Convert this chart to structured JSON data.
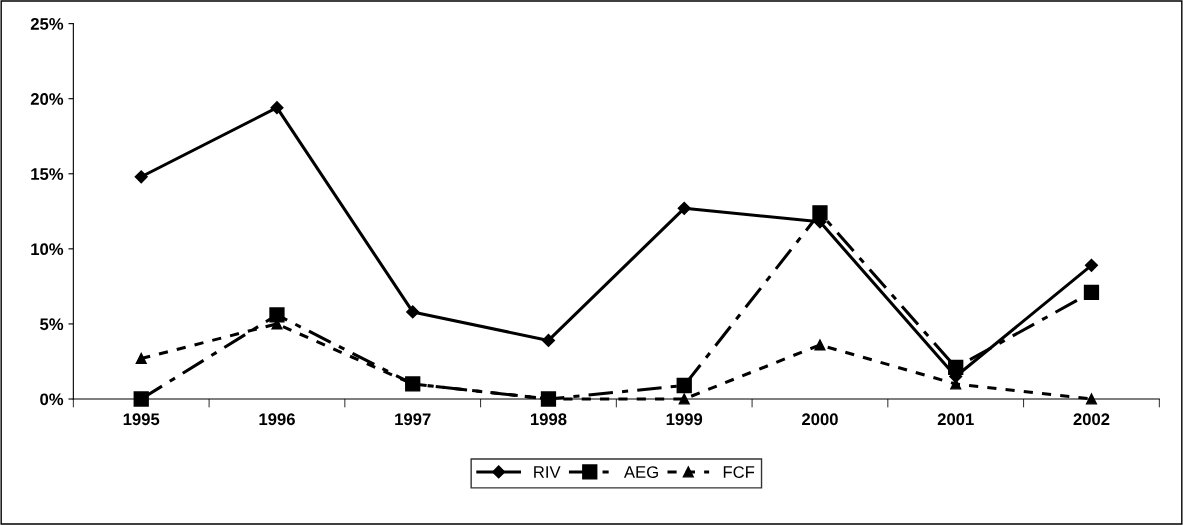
{
  "chart_data": {
    "type": "line",
    "categories": [
      "1995",
      "1996",
      "1997",
      "1998",
      "1999",
      "2000",
      "2001",
      "2002"
    ],
    "series": [
      {
        "name": "RIV",
        "color": "#000000",
        "marker": "diamond",
        "line_style": "solid",
        "values": [
          14.8,
          19.4,
          5.8,
          3.9,
          12.7,
          11.8,
          1.5,
          8.9
        ]
      },
      {
        "name": "AEG",
        "color": "#000000",
        "marker": "square",
        "line_style": "dashdot",
        "values": [
          0,
          5.6,
          1.0,
          0,
          0.9,
          12.4,
          2.1,
          7.1
        ]
      },
      {
        "name": "FCF",
        "color": "#000000",
        "marker": "triangle",
        "line_style": "dashed",
        "values": [
          2.7,
          5.0,
          1.0,
          0,
          0,
          3.6,
          1.0,
          0
        ]
      }
    ],
    "ylim": [
      0,
      25
    ],
    "yticks": [
      {
        "value": 0,
        "label": "0%"
      },
      {
        "value": 5,
        "label": "5%"
      },
      {
        "value": 10,
        "label": "10%"
      },
      {
        "value": 15,
        "label": "15%"
      },
      {
        "value": 20,
        "label": "20%"
      },
      {
        "value": 25,
        "label": "25%"
      }
    ],
    "grid": false,
    "legend": "bottom"
  }
}
